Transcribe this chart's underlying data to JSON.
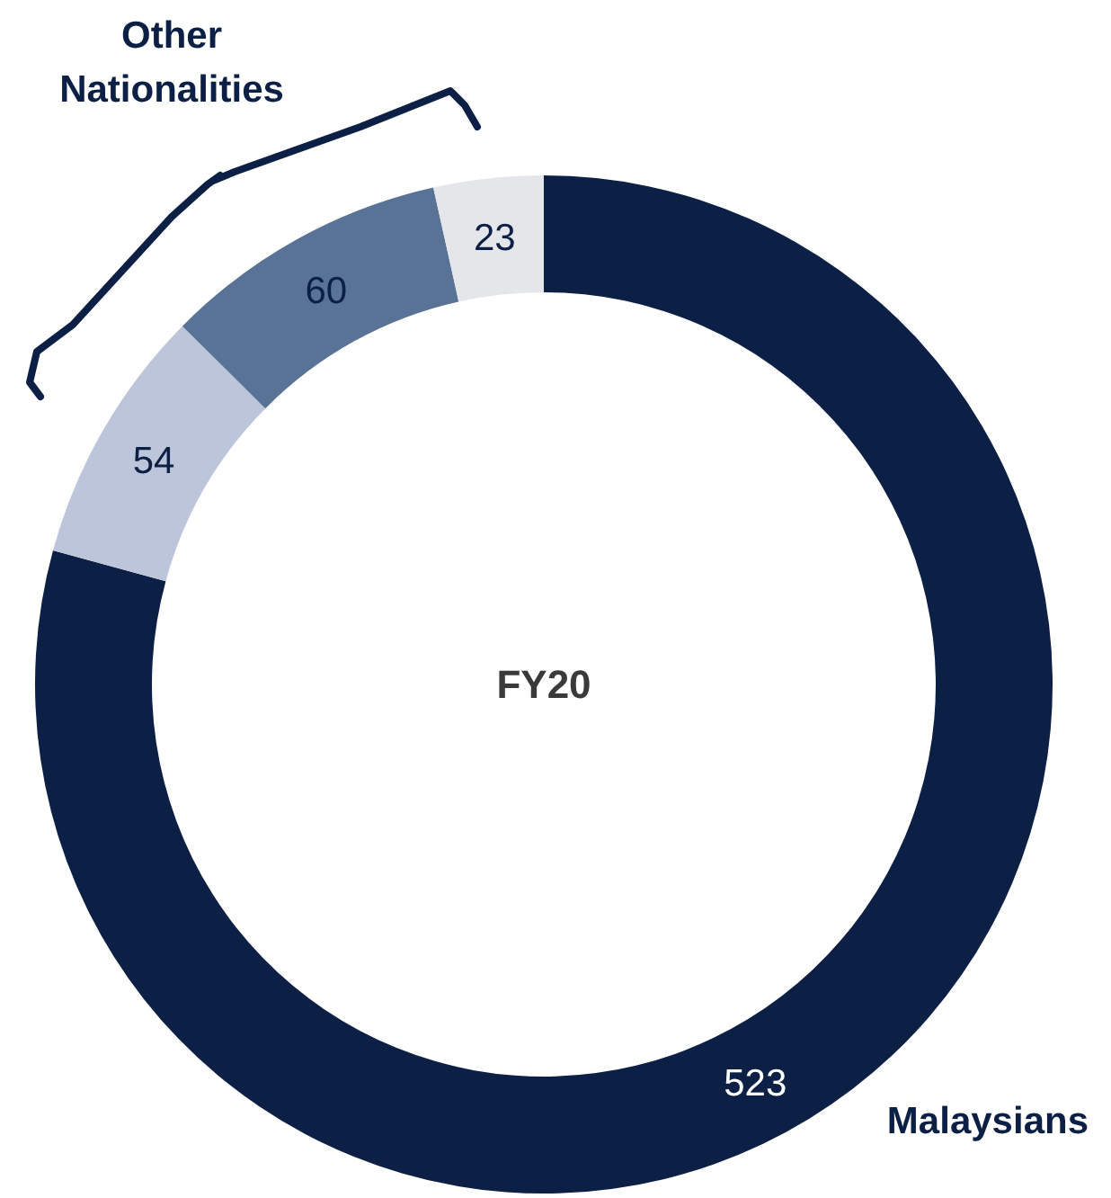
{
  "chart_data": {
    "type": "donut",
    "title": "FY20",
    "categories": [
      "Malaysians",
      null,
      null,
      null
    ],
    "values": [
      523,
      54,
      60,
      23
    ],
    "colors": [
      "#0c1f45",
      "#bcc5da",
      "#587396",
      "#e4e6ea"
    ],
    "data_labels": true,
    "annotations": [
      "Other Nationalities"
    ]
  }
}
